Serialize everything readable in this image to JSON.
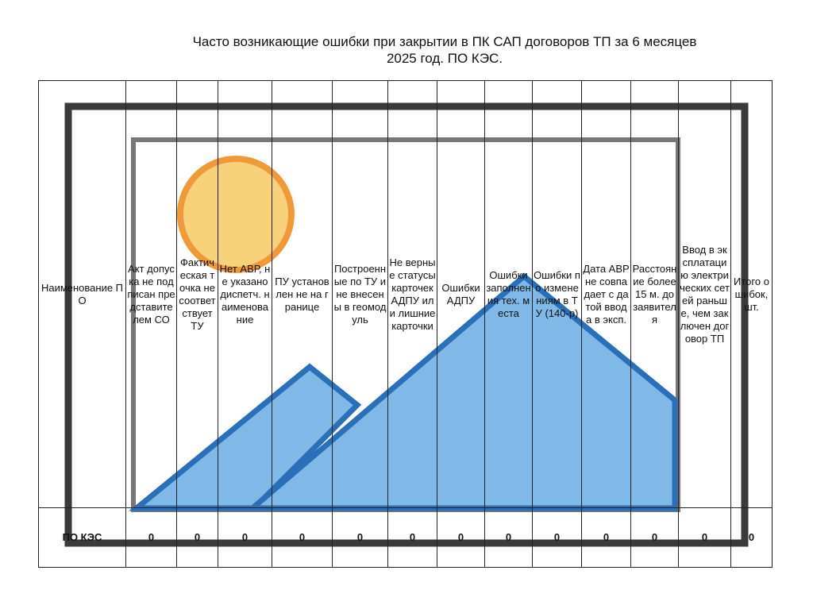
{
  "header": {
    "title": "Часто возникающие ошибки при закрытии в ПК САП договоров ТП за 6 месяцев 2025 год.",
    "subtitle": "ПО КЭС."
  },
  "table": {
    "headers": [
      "Наименование ПО",
      "Акт допуска не подписан представителем СО",
      "Фактическая точка не соответствует ТУ",
      "Нет АВР, не указано диспетч. наименование",
      "ПУ установлен не на границе",
      "Построенные по ТУ и не внесены в геомодуль",
      "Не верные статусы карточек АДПУ или лишние карточки",
      "Ошибки АДПУ",
      "Ошибки заполнения тех. места",
      "Ошибки по изменениям в ТУ (140-р)",
      "Дата АВР не совпадает с датой ввода в эксп.",
      "Расстояние более 15 м. до заявителя",
      "Ввод в эксплатацию электрических сетей раньше, чем заключен договор ТП",
      "Итого ошибок, шт."
    ],
    "rows": [
      [
        "ПО КЭС",
        "0",
        "0",
        "0",
        "0",
        "0",
        "0",
        "0",
        "0",
        "0",
        "0",
        "0",
        "0",
        "0"
      ]
    ]
  }
}
